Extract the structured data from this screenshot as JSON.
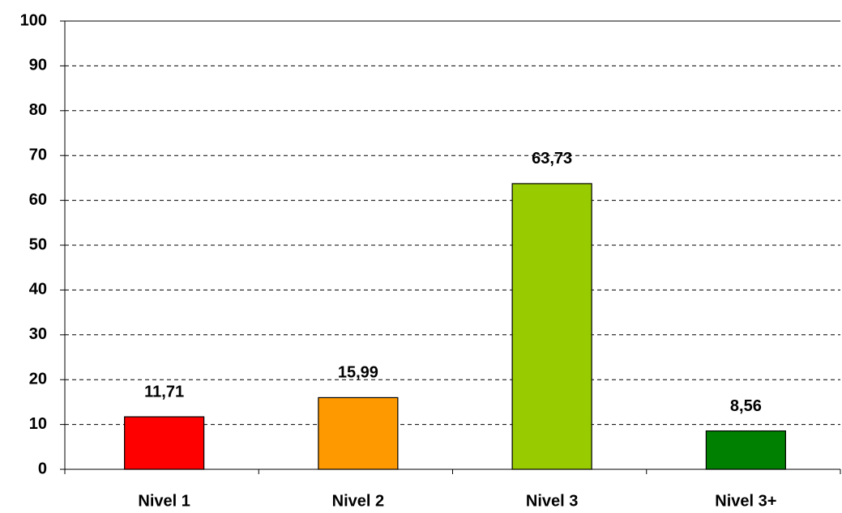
{
  "chart_data": {
    "type": "bar",
    "categories": [
      "Nivel 1",
      "Nivel 2",
      "Nivel 3",
      "Nivel 3+"
    ],
    "values": [
      11.71,
      15.99,
      63.73,
      8.56
    ],
    "value_labels": [
      "11,71",
      "15,99",
      "63,73",
      "8,56"
    ],
    "colors": [
      "#ff0000",
      "#ff9900",
      "#99cc00",
      "#008000"
    ],
    "ylim": [
      0,
      100
    ],
    "yticks": [
      0,
      10,
      20,
      30,
      40,
      50,
      60,
      70,
      80,
      90,
      100
    ],
    "grid": true
  }
}
